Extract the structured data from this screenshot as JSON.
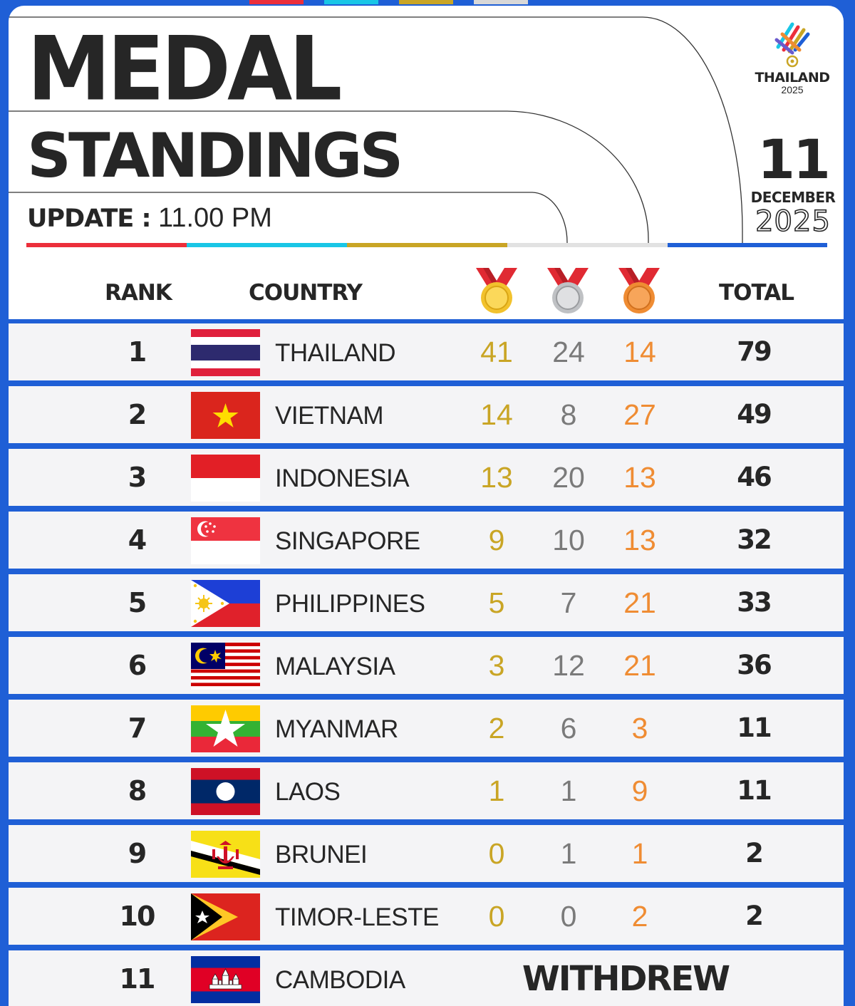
{
  "header": {
    "title_line1": "MEDAL",
    "title_line2": "STANDINGS",
    "update_label": "UPDATE :",
    "update_time": "11.00 PM"
  },
  "logo": {
    "name": "THAILAND",
    "year": "2025"
  },
  "date": {
    "day": "11",
    "month": "DECEMBER",
    "year": "2025"
  },
  "columns": {
    "rank": "RANK",
    "country": "COUNTRY",
    "total": "TOTAL"
  },
  "colors": {
    "red": "#ec2f3b",
    "cyan": "#19c6e6",
    "gold": "#c9a525",
    "silver": "#d8d8d8",
    "blue": "#1f5fd6",
    "bronze": "#ef8c33",
    "text": "#262626"
  },
  "rows": [
    {
      "rank": "1",
      "country": "THAILAND",
      "gold": "41",
      "silver": "24",
      "bronze": "14",
      "total": "79",
      "flag": "thailand-flag"
    },
    {
      "rank": "2",
      "country": "VIETNAM",
      "gold": "14",
      "silver": "8",
      "bronze": "27",
      "total": "49",
      "flag": "vietnam-flag"
    },
    {
      "rank": "3",
      "country": "INDONESIA",
      "gold": "13",
      "silver": "20",
      "bronze": "13",
      "total": "46",
      "flag": "indonesia-flag"
    },
    {
      "rank": "4",
      "country": "SINGAPORE",
      "gold": "9",
      "silver": "10",
      "bronze": "13",
      "total": "32",
      "flag": "singapore-flag"
    },
    {
      "rank": "5",
      "country": "PHILIPPINES",
      "gold": "5",
      "silver": "7",
      "bronze": "21",
      "total": "33",
      "flag": "philippines-flag"
    },
    {
      "rank": "6",
      "country": "MALAYSIA",
      "gold": "3",
      "silver": "12",
      "bronze": "21",
      "total": "36",
      "flag": "malaysia-flag"
    },
    {
      "rank": "7",
      "country": "MYANMAR",
      "gold": "2",
      "silver": "6",
      "bronze": "3",
      "total": "11",
      "flag": "myanmar-flag"
    },
    {
      "rank": "8",
      "country": "LAOS",
      "gold": "1",
      "silver": "1",
      "bronze": "9",
      "total": "11",
      "flag": "laos-flag"
    },
    {
      "rank": "9",
      "country": "BRUNEI",
      "gold": "0",
      "silver": "1",
      "bronze": "1",
      "total": "2",
      "flag": "brunei-flag"
    },
    {
      "rank": "10",
      "country": "TIMOR-LESTE",
      "gold": "0",
      "silver": "0",
      "bronze": "2",
      "total": "2",
      "flag": "timor-leste-flag"
    },
    {
      "rank": "11",
      "country": "CAMBODIA",
      "status": "WITHDREW",
      "flag": "cambodia-flag"
    }
  ]
}
